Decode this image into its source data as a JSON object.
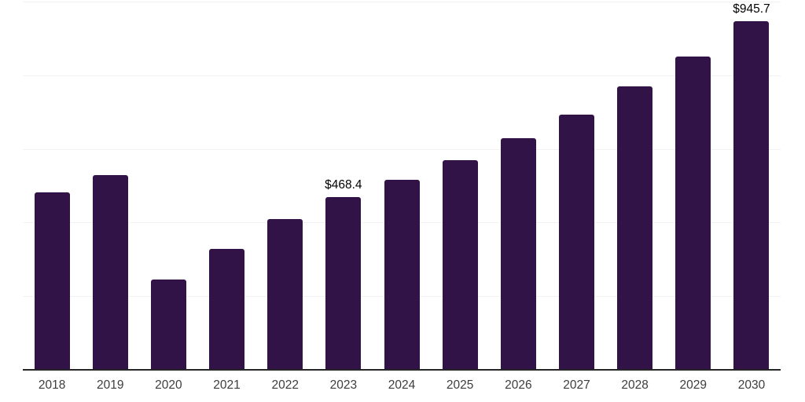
{
  "chart_data": {
    "type": "bar",
    "title": "",
    "xlabel": "",
    "ylabel": "",
    "categories": [
      "2018",
      "2019",
      "2020",
      "2021",
      "2022",
      "2023",
      "2024",
      "2025",
      "2026",
      "2027",
      "2028",
      "2029",
      "2030"
    ],
    "values": [
      482,
      529,
      245,
      328,
      409,
      468.4,
      516,
      569,
      629,
      693,
      770,
      851,
      945.7
    ],
    "point_labels": [
      "",
      "",
      "",
      "",
      "",
      "$468.4",
      "",
      "",
      "",
      "",
      "",
      "",
      "$945.7"
    ],
    "ylim": [
      0,
      1000
    ],
    "gridline_step": 200,
    "grid": true,
    "legend": false,
    "colors": {
      "bar": "#321347",
      "gridline": "#f2f2f2",
      "axis_line": "#262626",
      "tick_label": "#3d3d3d",
      "data_label": "#000000",
      "background": "#ffffff"
    }
  }
}
